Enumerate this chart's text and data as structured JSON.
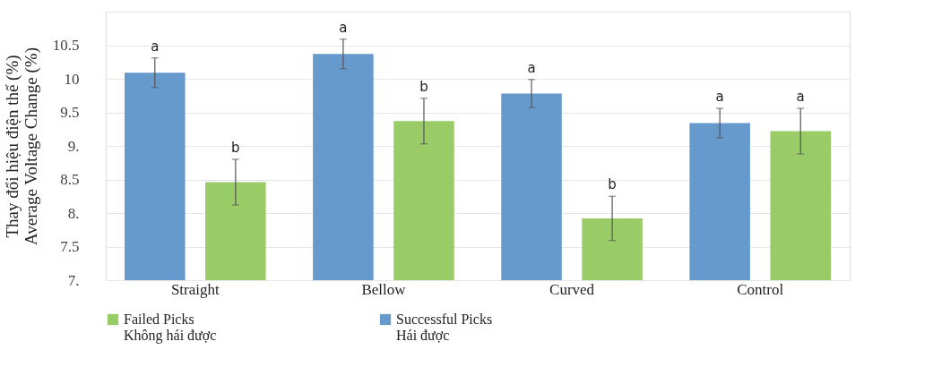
{
  "chart_data": {
    "type": "bar",
    "ylabel": "Thay đổi hiệu điện thế (%)\nAverage Voltage Change (%)",
    "categories": [
      "Straight",
      "Bellow",
      "Curved",
      "Control"
    ],
    "series": [
      {
        "name": "Successful Picks\nHái được",
        "color": "#6699cc",
        "values": [
          10.09,
          10.37,
          9.78,
          9.34
        ],
        "errors": [
          0.22,
          0.22,
          0.21,
          0.22
        ]
      },
      {
        "name": "Failed Picks\nKhông hái được",
        "color": "#99cc66",
        "values": [
          8.46,
          9.37,
          7.92,
          9.22
        ],
        "errors": [
          0.34,
          0.34,
          0.33,
          0.34
        ]
      }
    ],
    "ylim": [
      7,
      11
    ],
    "yticks": [
      {
        "value": 7,
        "label": "7."
      },
      7.5,
      {
        "value": 8,
        "label": "8."
      },
      8.5,
      {
        "value": 9,
        "label": "9."
      },
      9.5,
      10,
      10.5,
      {
        "value": 11,
        "label": null
      }
    ],
    "grid": "y",
    "legend": "bottom",
    "annotations": [
      "a",
      "b",
      "a",
      "b",
      "a",
      "b",
      "a",
      "a"
    ]
  }
}
